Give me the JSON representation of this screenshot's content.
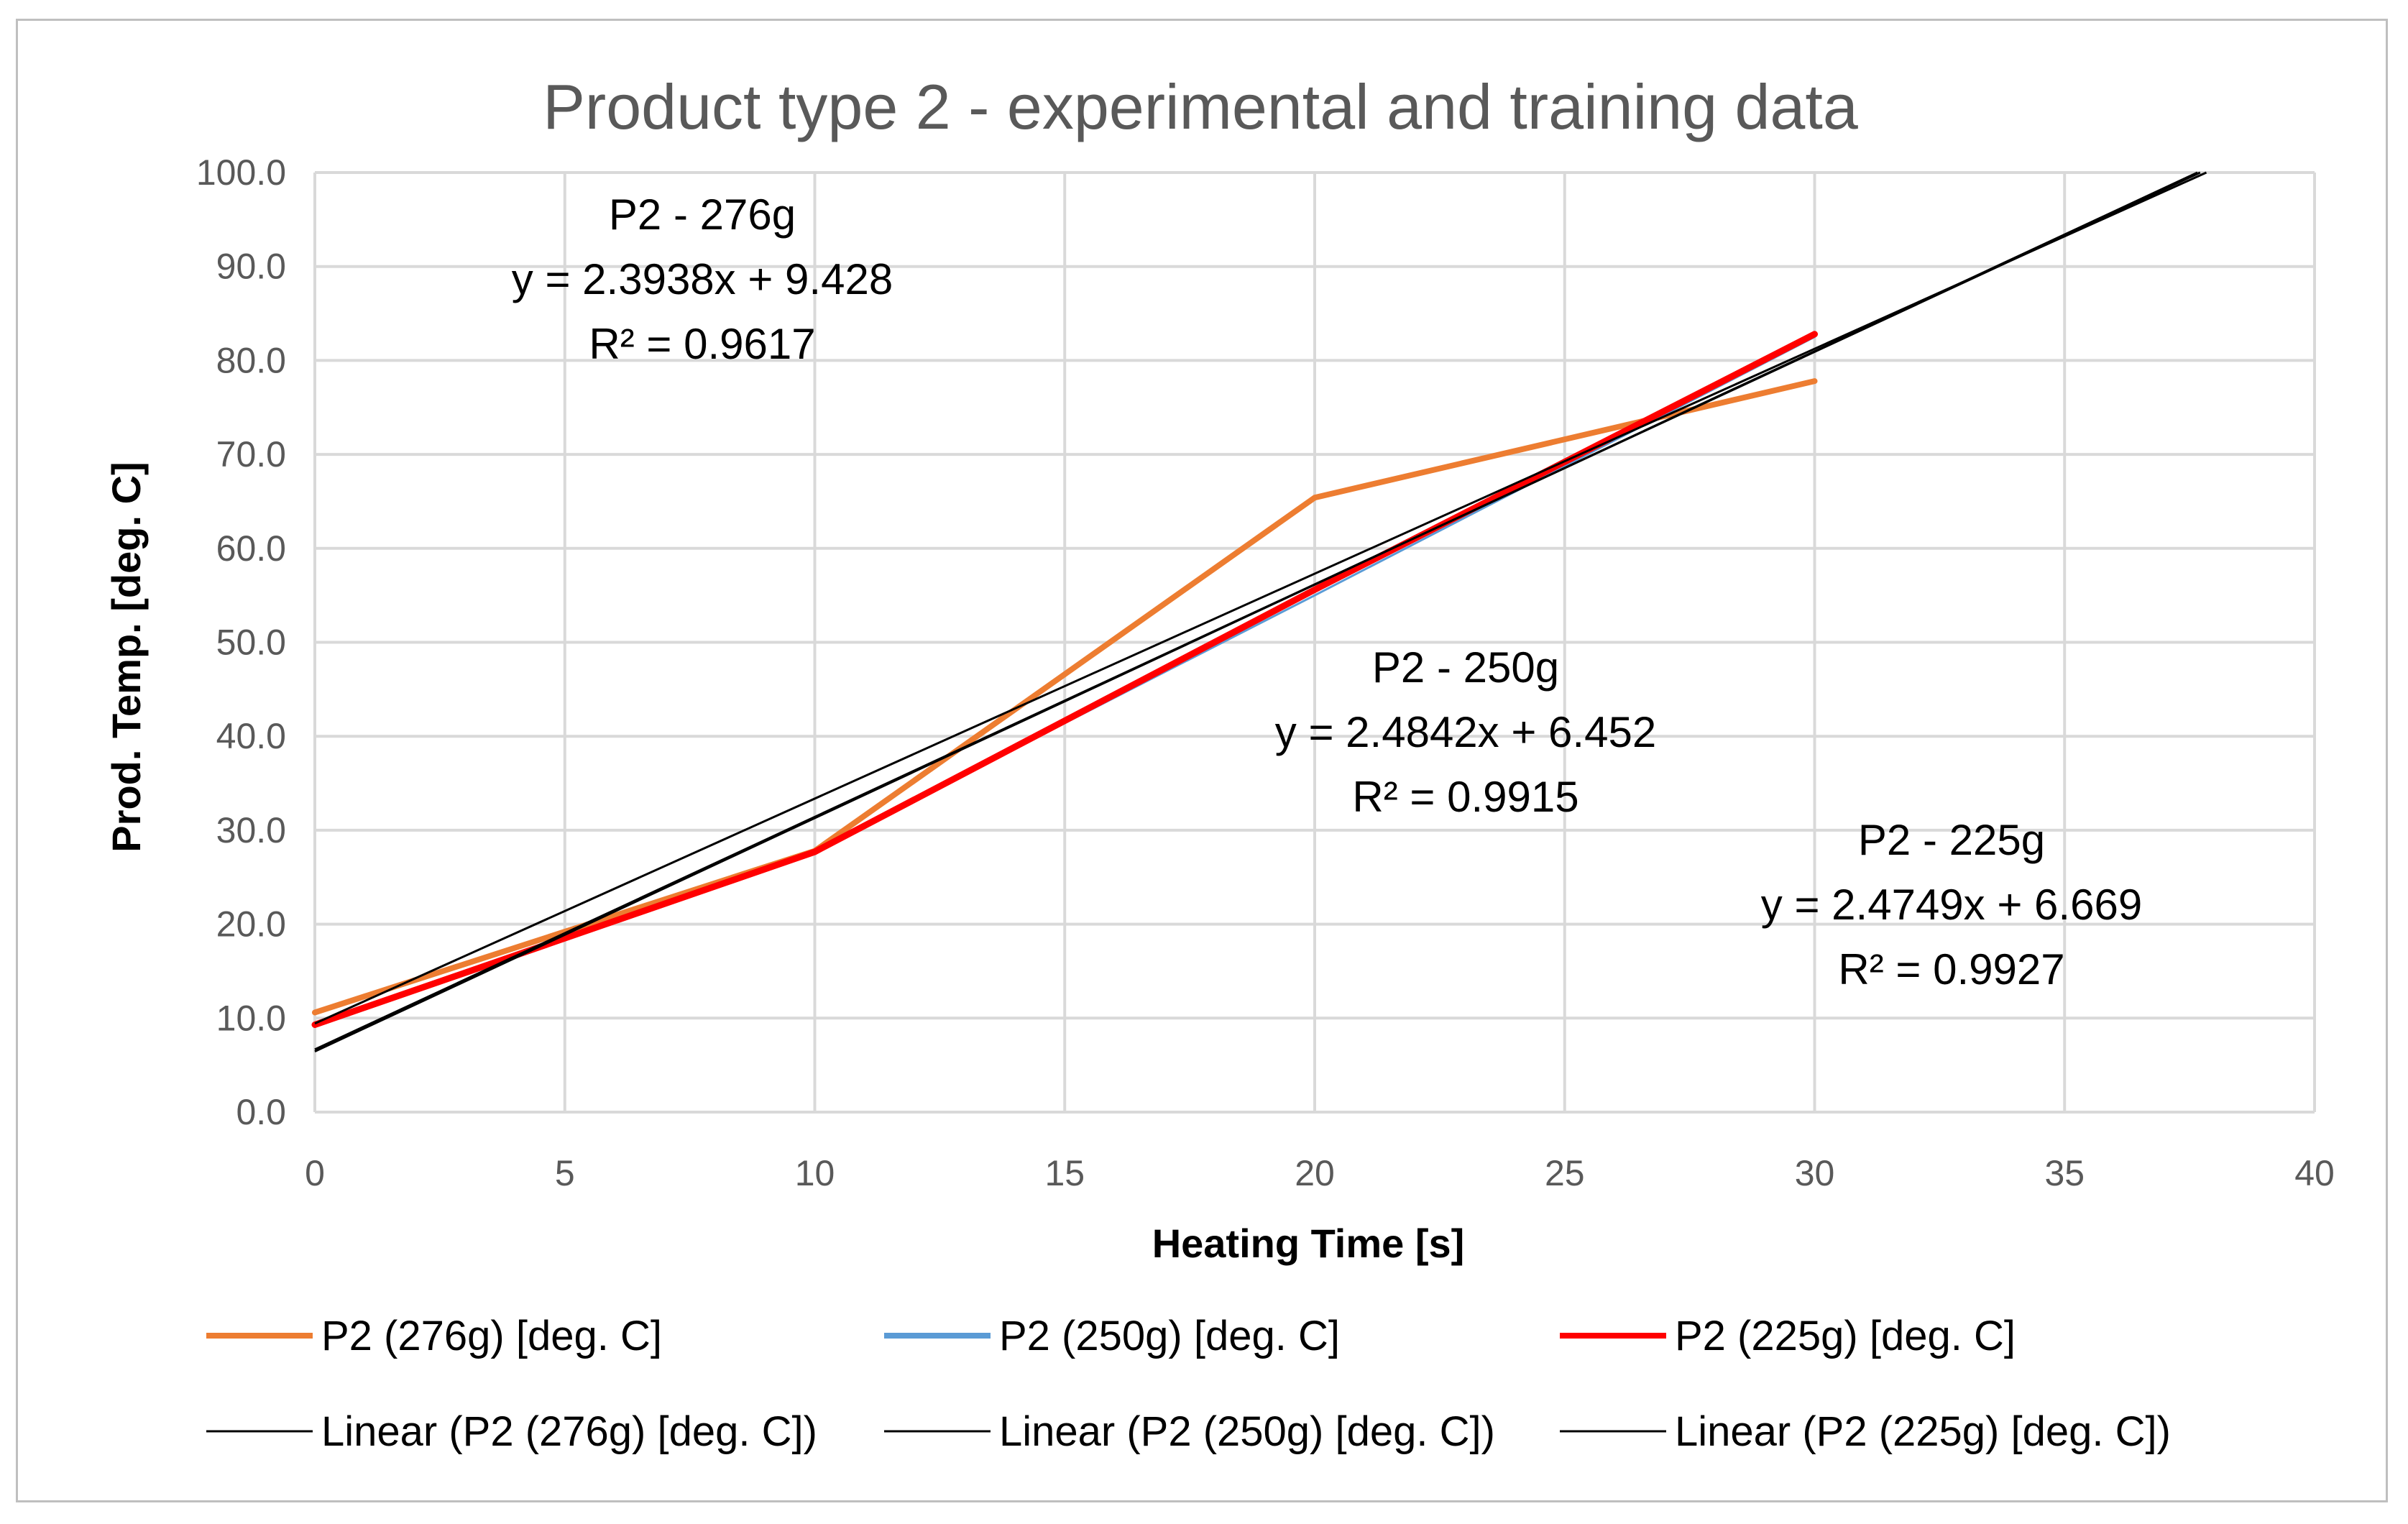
{
  "chart_data": {
    "type": "line",
    "title": "Product type 2 - experimental and training data",
    "xlabel": "Heating Time [s]",
    "ylabel": "Prod. Temp. [deg. C]",
    "xlim": [
      0,
      40
    ],
    "ylim": [
      0,
      100
    ],
    "x_ticks": [
      "0",
      "5",
      "10",
      "15",
      "20",
      "25",
      "30",
      "35",
      "40"
    ],
    "y_ticks": [
      "0.0",
      "10.0",
      "20.0",
      "30.0",
      "40.0",
      "50.0",
      "60.0",
      "70.0",
      "80.0",
      "90.0",
      "100.0"
    ],
    "grid": true,
    "legend_position": "bottom",
    "series": [
      {
        "name": "P2 (276g) [deg. C]",
        "color": "#ed7d31",
        "x": [
          0,
          10,
          20,
          30
        ],
        "values": [
          10.6,
          27.8,
          65.4,
          77.8
        ]
      },
      {
        "name": "P2 (250g) [deg. C]",
        "color": "#5b9bd5",
        "x": [
          0,
          10,
          20,
          30
        ],
        "values": [
          9.2,
          27.8,
          55.0,
          82.5
        ]
      },
      {
        "name": "P2 (225g) [deg. C]",
        "color": "#ff0000",
        "x": [
          0,
          10,
          20,
          30
        ],
        "values": [
          9.3,
          27.7,
          55.6,
          82.8
        ]
      }
    ],
    "trendlines": [
      {
        "name": "Linear (P2 (276g) [deg. C])",
        "color": "#000000",
        "slope": 2.3938,
        "intercept": 9.428
      },
      {
        "name": "Linear (P2 (250g) [deg. C])",
        "color": "#000000",
        "slope": 2.4842,
        "intercept": 6.452
      },
      {
        "name": "Linear (P2 (225g) [deg. C])",
        "color": "#000000",
        "slope": 2.4749,
        "intercept": 6.669
      }
    ],
    "annotations": [
      {
        "label": "P2 - 276g",
        "equation": "y = 2.3938x + 9.428",
        "r2": "R² = 0.9617"
      },
      {
        "label": "P2 - 250g",
        "equation": "y = 2.4842x + 6.452",
        "r2": "R² = 0.9915"
      },
      {
        "label": "P2 - 225g",
        "equation": "y = 2.4749x + 6.669",
        "r2": "R² = 0.9927"
      }
    ]
  }
}
